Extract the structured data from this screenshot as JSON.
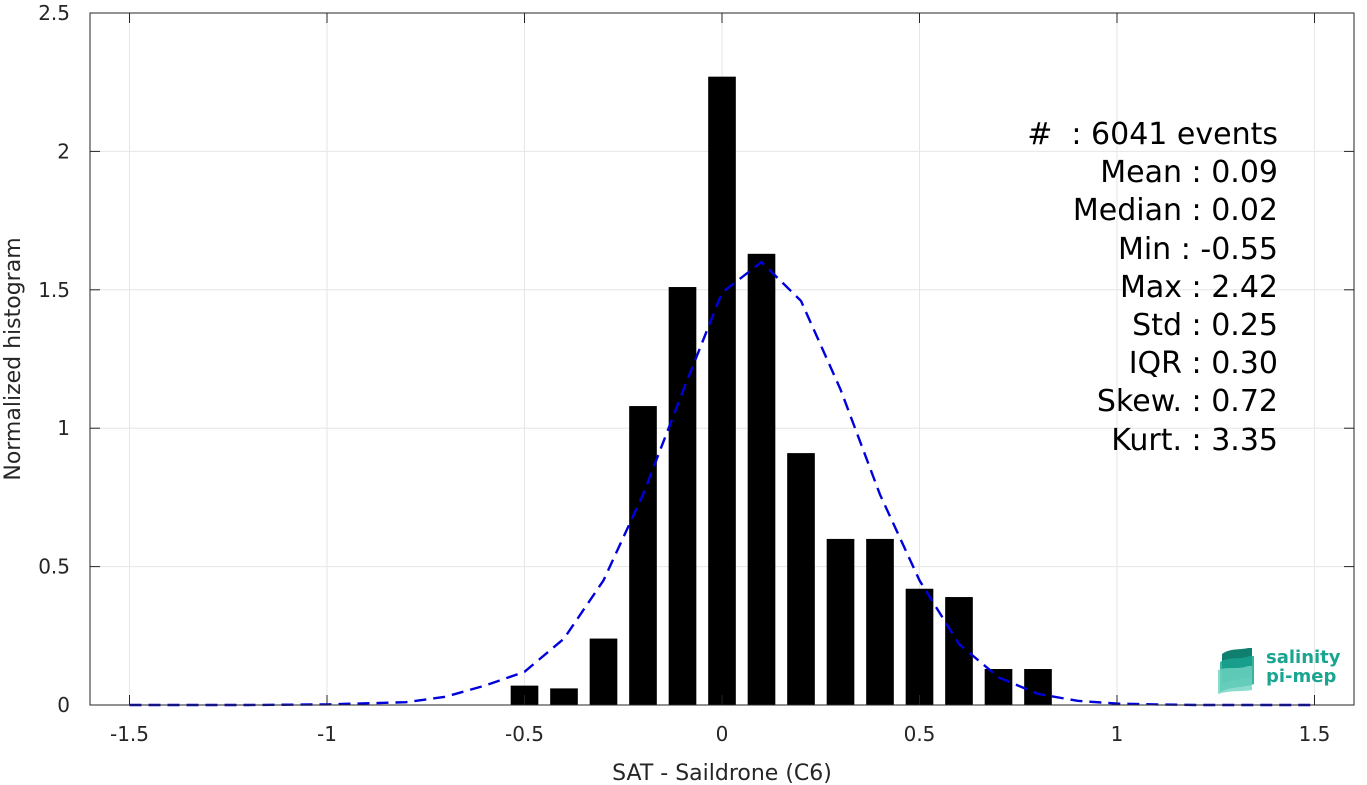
{
  "chart_data": {
    "type": "bar",
    "xlabel": "SAT - Saildrone (C6)",
    "ylabel": "Normalized histogram",
    "xlim": [
      -1.6,
      1.6
    ],
    "ylim": [
      0,
      2.5
    ],
    "grid": true,
    "xticks": [
      "-1.5",
      "-1",
      "-0.5",
      "0",
      "0.5",
      "1",
      "1.5"
    ],
    "xtick_values": [
      -1.5,
      -1,
      -0.5,
      0,
      0.5,
      1,
      1.5
    ],
    "yticks": [
      "0",
      "0.5",
      "1",
      "1.5",
      "2",
      "2.5"
    ],
    "ytick_values": [
      0,
      0.5,
      1,
      1.5,
      2,
      2.5
    ],
    "bar_width": 0.07,
    "bars": {
      "x": [
        -0.5,
        -0.4,
        -0.3,
        -0.2,
        -0.1,
        0.0,
        0.1,
        0.2,
        0.3,
        0.4,
        0.5,
        0.6,
        0.7,
        0.8
      ],
      "values": [
        0.07,
        0.06,
        0.24,
        1.08,
        1.51,
        2.27,
        1.63,
        0.91,
        0.6,
        0.6,
        0.42,
        0.39,
        0.13,
        0.13
      ],
      "color": "#000000"
    },
    "fit_curve": {
      "style": "dashed",
      "color": "#0000dd",
      "x": [
        -1.5,
        -1.2,
        -1.0,
        -0.8,
        -0.7,
        -0.6,
        -0.5,
        -0.4,
        -0.3,
        -0.2,
        -0.1,
        0.0,
        0.1,
        0.2,
        0.3,
        0.4,
        0.5,
        0.6,
        0.7,
        0.8,
        0.9,
        1.0,
        1.1,
        1.2,
        1.3,
        1.4,
        1.5
      ],
      "y": [
        0.0,
        0.0,
        0.002,
        0.01,
        0.03,
        0.07,
        0.12,
        0.24,
        0.45,
        0.76,
        1.13,
        1.49,
        1.6,
        1.46,
        1.14,
        0.76,
        0.45,
        0.22,
        0.1,
        0.04,
        0.015,
        0.005,
        0.002,
        0.0,
        0.0,
        0.0,
        0.0
      ]
    }
  },
  "stats": {
    "lines": [
      "#  : 6041 events",
      "Mean : 0.09",
      "Median : 0.02",
      "Min : -0.55",
      "Max : 2.42",
      "Std : 0.25",
      "IQR : 0.30",
      "Skew. : 0.72",
      "Kurt. : 3.35"
    ]
  },
  "logo": {
    "line1": "salinity",
    "line2": "pi-mep",
    "colors": [
      "#1aa591",
      "#6fd3c0",
      "#0f7f6f"
    ]
  }
}
